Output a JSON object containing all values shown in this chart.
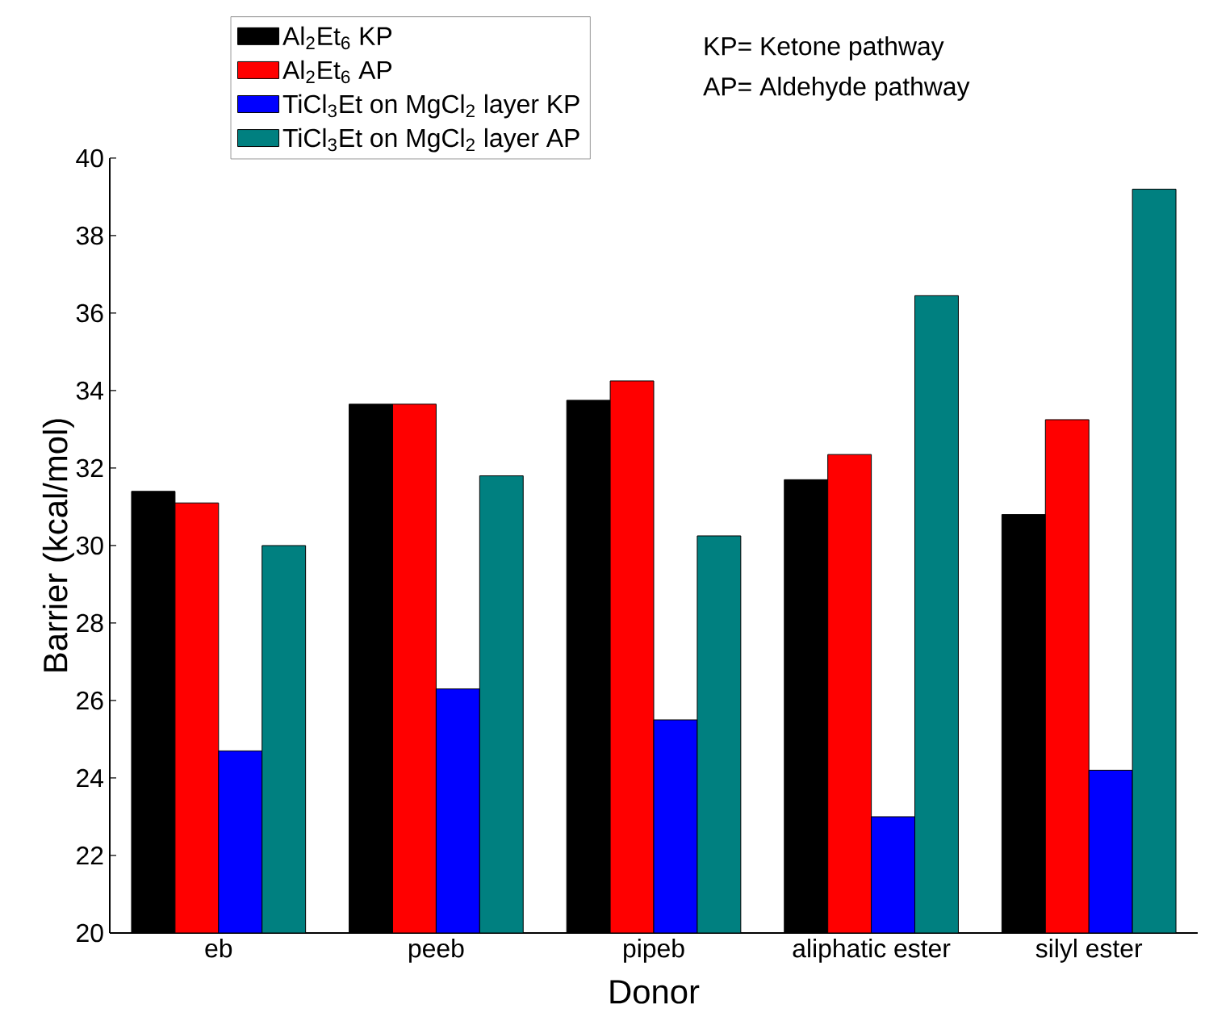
{
  "chart_data": {
    "type": "bar",
    "xlabel": "Donor",
    "ylabel": "Barrier (kcal/mol)",
    "categories": [
      "eb",
      "peeb",
      "pipeb",
      "aliphatic ester",
      "silyl ester"
    ],
    "series": [
      {
        "name": "Al$_{2}$Et$_{6}$ KP",
        "color": "#000000",
        "values": [
          31.4,
          33.65,
          33.75,
          31.7,
          30.8
        ]
      },
      {
        "name": "Al$_{2}$Et$_{6}$ AP",
        "color": "#ff0000",
        "values": [
          31.1,
          33.65,
          34.25,
          32.35,
          33.25
        ]
      },
      {
        "name": "TiCl$_{3}$Et on MgCl$_{2}$ layer KP",
        "color": "#0000ff",
        "values": [
          24.7,
          26.3,
          25.5,
          23.0,
          24.2
        ]
      },
      {
        "name": "TiCl$_{3}$Et on MgCl$_{2}$ layer AP",
        "color": "#008080",
        "values": [
          30.0,
          31.8,
          30.25,
          36.45,
          39.2
        ]
      }
    ],
    "ylim": [
      20,
      40
    ],
    "yticks": [
      20,
      22,
      24,
      26,
      28,
      30,
      32,
      34,
      36,
      38,
      40
    ],
    "legend": "top left",
    "annotations": [
      "KP= Ketone pathway",
      "AP= Aldehyde pathway"
    ]
  }
}
